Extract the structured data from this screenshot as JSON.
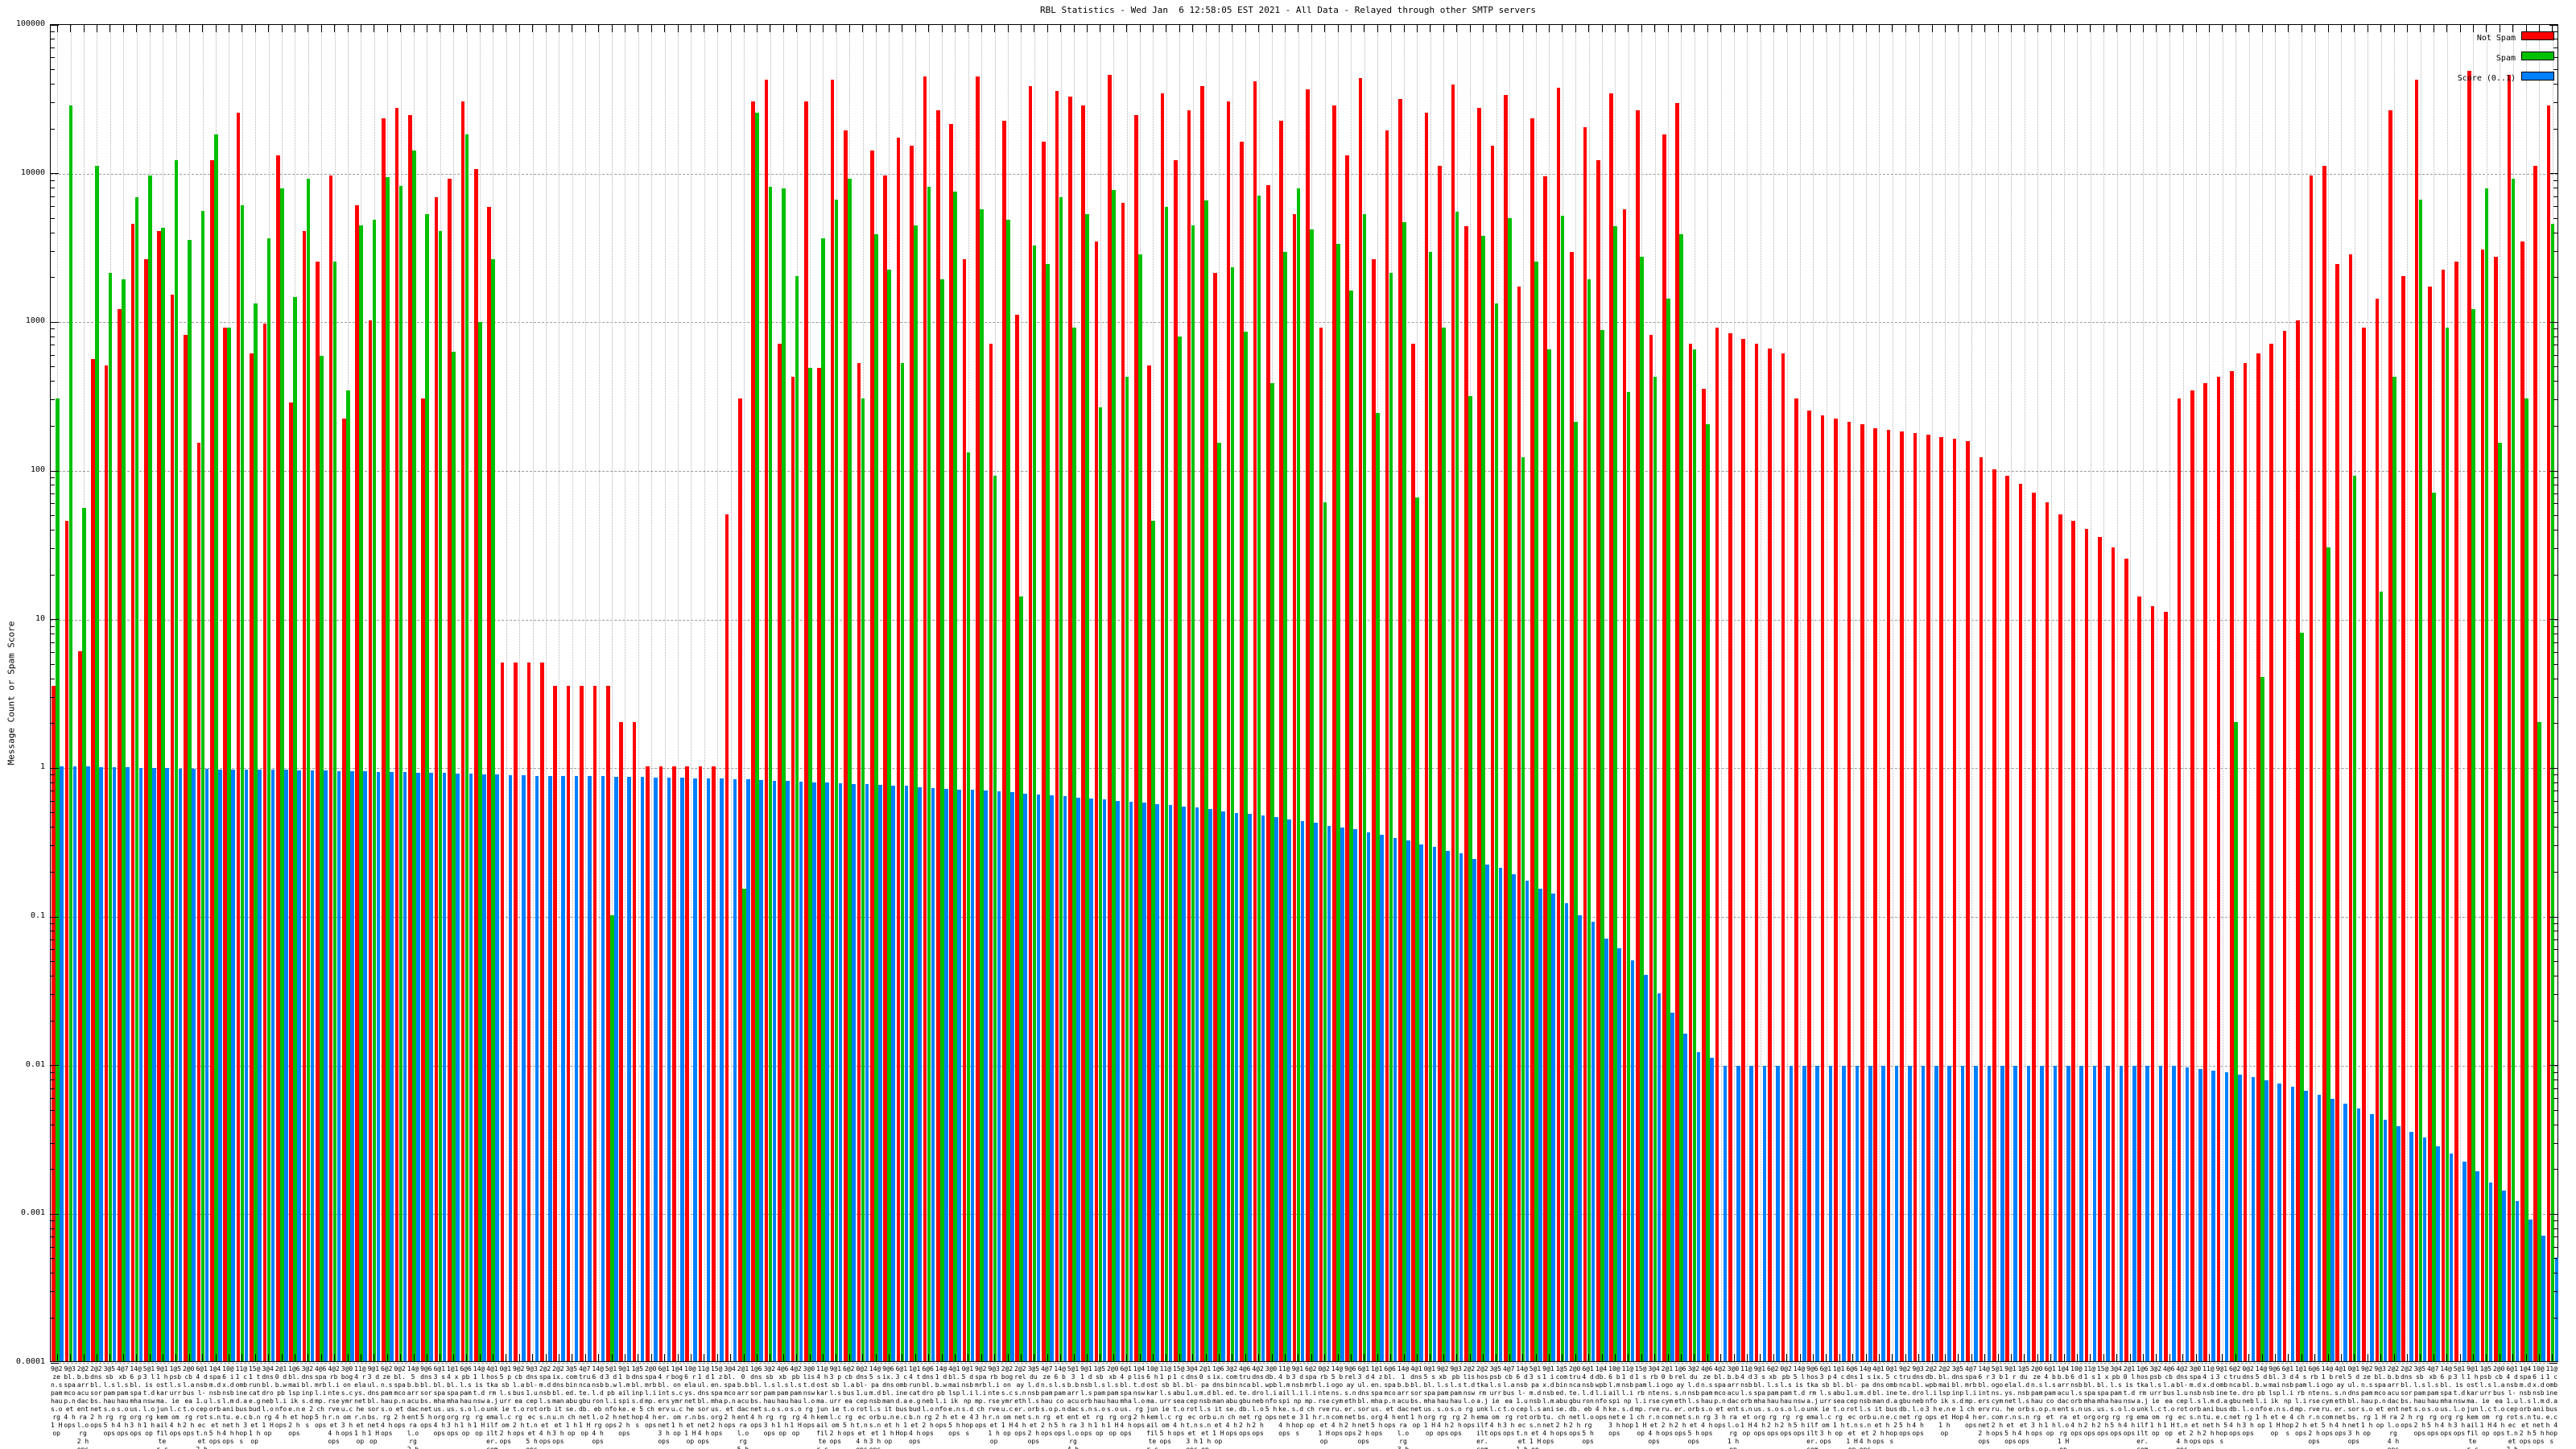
{
  "title": "RBL Statistics - Wed Jan  6 12:58:05 EST 2021 - All Data - Relayed through other SMTP servers",
  "axes": {
    "y_label": "Message Count or Spam Score",
    "y_ticks": [
      "100000",
      "10000",
      "1000",
      "100",
      "10",
      "1",
      "0.1",
      "0.01",
      "0.001",
      "0.0001"
    ],
    "y_min": 0.0001,
    "y_max": 100000,
    "scale": "log"
  },
  "legend": {
    "items": [
      {
        "label": "Not Spam",
        "color": "#ff0000"
      },
      {
        "label": "Spam",
        "color": "#00c000"
      },
      {
        "label": "Score (0..1)",
        "color": "#0080ff"
      }
    ]
  },
  "chart_data": {
    "type": "bar",
    "title": "RBL Statistics - Wed Jan  6 12:58:05 EST 2021 - All Data - Relayed through other SMTP servers",
    "ylabel": "Message Count or Spam Score",
    "ylim": [
      0.0001,
      100000
    ],
    "grid": true,
    "legend_position": "top-right",
    "series_names": [
      "Not Spam",
      "Spam",
      "Score (0..1)"
    ],
    "series_colors": [
      "#ff0000",
      "#00c000",
      "#0080ff"
    ],
    "clusters": [
      [
        3.5,
        300,
        1.0
      ],
      [
        45,
        28000,
        1.0
      ],
      [
        6,
        55,
        1.0
      ],
      [
        550,
        11000,
        0.99
      ],
      [
        500,
        2100,
        0.99
      ],
      [
        1200,
        1900,
        0.99
      ],
      [
        4500,
        6800,
        0.98
      ],
      [
        2600,
        9500,
        0.98
      ],
      [
        4000,
        4200,
        0.98
      ],
      [
        1500,
        12000,
        0.97
      ],
      [
        800,
        3500,
        0.97
      ],
      [
        150,
        5500,
        0.97
      ],
      [
        12000,
        18000,
        0.96
      ],
      [
        900,
        900,
        0.96
      ],
      [
        25000,
        6000,
        0.96
      ],
      [
        600,
        1300,
        0.95
      ],
      [
        950,
        3600,
        0.95
      ],
      [
        13000,
        7800,
        0.95
      ],
      [
        280,
        1450,
        0.94
      ],
      [
        4000,
        9000,
        0.94
      ],
      [
        2500,
        580,
        0.94
      ],
      [
        9500,
        2500,
        0.93
      ],
      [
        220,
        340,
        0.93
      ],
      [
        6000,
        4400,
        0.93
      ],
      [
        1000,
        4800,
        0.92
      ],
      [
        23000,
        9200,
        0.92
      ],
      [
        27000,
        8100,
        0.92
      ],
      [
        24000,
        14000,
        0.91
      ],
      [
        300,
        5200,
        0.91
      ],
      [
        6800,
        4000,
        0.91
      ],
      [
        9000,
        620,
        0.9
      ],
      [
        30000,
        18000,
        0.9
      ],
      [
        10500,
        980,
        0.89
      ],
      [
        5800,
        2600,
        0.89
      ],
      [
        5,
        0,
        0.88
      ],
      [
        5,
        0,
        0.88
      ],
      [
        5,
        0,
        0.87
      ],
      [
        5,
        0,
        0.87
      ],
      [
        3.5,
        0,
        0.87
      ],
      [
        3.5,
        0,
        0.86
      ],
      [
        3.5,
        0,
        0.86
      ],
      [
        3.5,
        0,
        0.86
      ],
      [
        3.5,
        0.1,
        0.85
      ],
      [
        2,
        0,
        0.85
      ],
      [
        2,
        0,
        0.85
      ],
      [
        1,
        0,
        0.84
      ],
      [
        1,
        0,
        0.84
      ],
      [
        1,
        0,
        0.84
      ],
      [
        1,
        0,
        0.83
      ],
      [
        1,
        0,
        0.83
      ],
      [
        1,
        0,
        0.83
      ],
      [
        50,
        0,
        0.82
      ],
      [
        300,
        0.15,
        0.82
      ],
      [
        30000,
        25000,
        0.81
      ],
      [
        42000,
        8000,
        0.8
      ],
      [
        700,
        7800,
        0.8
      ],
      [
        420,
        2000,
        0.79
      ],
      [
        30000,
        480,
        0.78
      ],
      [
        480,
        3600,
        0.78
      ],
      [
        42000,
        6500,
        0.77
      ],
      [
        19000,
        9000,
        0.76
      ],
      [
        520,
        300,
        0.76
      ],
      [
        14000,
        3800,
        0.75
      ],
      [
        9500,
        2200,
        0.74
      ],
      [
        17000,
        520,
        0.74
      ],
      [
        15000,
        4400,
        0.73
      ],
      [
        44000,
        8000,
        0.72
      ],
      [
        26000,
        1900,
        0.71
      ],
      [
        21000,
        7400,
        0.7
      ],
      [
        2600,
        130,
        0.7
      ],
      [
        44000,
        5600,
        0.69
      ],
      [
        700,
        90,
        0.68
      ],
      [
        22000,
        4800,
        0.67
      ],
      [
        1100,
        14,
        0.66
      ],
      [
        38000,
        3200,
        0.65
      ],
      [
        16000,
        2400,
        0.64
      ],
      [
        35000,
        6800,
        0.63
      ],
      [
        32000,
        900,
        0.62
      ],
      [
        28000,
        5200,
        0.61
      ],
      [
        3400,
        260,
        0.6
      ],
      [
        45000,
        7600,
        0.59
      ],
      [
        6200,
        420,
        0.58
      ],
      [
        24000,
        2800,
        0.57
      ],
      [
        500,
        45,
        0.56
      ],
      [
        34000,
        5800,
        0.55
      ],
      [
        12000,
        780,
        0.54
      ],
      [
        26000,
        4400,
        0.53
      ],
      [
        38000,
        6400,
        0.52
      ],
      [
        2100,
        150,
        0.5
      ],
      [
        30000,
        2300,
        0.49
      ],
      [
        16000,
        840,
        0.48
      ],
      [
        41000,
        6900,
        0.47
      ],
      [
        8200,
        380,
        0.46
      ],
      [
        22000,
        2900,
        0.44
      ],
      [
        5200,
        7800,
        0.43
      ],
      [
        36000,
        4100,
        0.42
      ],
      [
        900,
        60,
        0.4
      ],
      [
        28000,
        3300,
        0.39
      ],
      [
        13000,
        1600,
        0.38
      ],
      [
        43000,
        5200,
        0.36
      ],
      [
        2600,
        240,
        0.35
      ],
      [
        19000,
        2100,
        0.33
      ],
      [
        31000,
        4600,
        0.32
      ],
      [
        700,
        65,
        0.3
      ],
      [
        25000,
        2900,
        0.29
      ],
      [
        11000,
        900,
        0.27
      ],
      [
        39000,
        5400,
        0.26
      ],
      [
        4300,
        310,
        0.24
      ],
      [
        27000,
        3700,
        0.22
      ],
      [
        15000,
        1300,
        0.21
      ],
      [
        33000,
        4900,
        0.19
      ],
      [
        1700,
        120,
        0.17
      ],
      [
        23000,
        2500,
        0.15
      ],
      [
        9400,
        640,
        0.14
      ],
      [
        37000,
        5100,
        0.12
      ],
      [
        2900,
        210,
        0.1
      ],
      [
        20000,
        1900,
        0.09
      ],
      [
        12000,
        860,
        0.07
      ],
      [
        34000,
        4300,
        0.06
      ],
      [
        5600,
        330,
        0.05
      ],
      [
        26000,
        2700,
        0.04
      ],
      [
        800,
        420,
        0.03
      ],
      [
        18000,
        1400,
        0.022
      ],
      [
        29000,
        3800,
        0.016
      ],
      [
        700,
        640,
        0.012
      ],
      [
        350,
        200,
        0.011
      ],
      [
        900,
        0,
        0.0097
      ],
      [
        820,
        0,
        0.0097
      ],
      [
        750,
        0,
        0.0097
      ],
      [
        700,
        0,
        0.0097
      ],
      [
        650,
        0,
        0.0097
      ],
      [
        600,
        0,
        0.0097
      ],
      [
        300,
        0,
        0.0097
      ],
      [
        250,
        0,
        0.0097
      ],
      [
        230,
        0,
        0.0097
      ],
      [
        220,
        0,
        0.0097
      ],
      [
        210,
        0,
        0.0097
      ],
      [
        200,
        0,
        0.0097
      ],
      [
        190,
        0,
        0.0097
      ],
      [
        185,
        0,
        0.0097
      ],
      [
        180,
        0,
        0.0097
      ],
      [
        175,
        0,
        0.0097
      ],
      [
        170,
        0,
        0.0097
      ],
      [
        165,
        0,
        0.0097
      ],
      [
        160,
        0,
        0.0097
      ],
      [
        155,
        0,
        0.0097
      ],
      [
        120,
        0,
        0.0097
      ],
      [
        100,
        0,
        0.0097
      ],
      [
        90,
        0,
        0.0097
      ],
      [
        80,
        0,
        0.0097
      ],
      [
        70,
        0,
        0.0097
      ],
      [
        60,
        0,
        0.0097
      ],
      [
        50,
        0,
        0.0097
      ],
      [
        45,
        0,
        0.0097
      ],
      [
        40,
        0,
        0.0097
      ],
      [
        35,
        0,
        0.0097
      ],
      [
        30,
        0,
        0.0097
      ],
      [
        25,
        0,
        0.0097
      ],
      [
        14,
        0,
        0.0097
      ],
      [
        12,
        0,
        0.0097
      ],
      [
        11,
        0,
        0.0097
      ],
      [
        300,
        0,
        0.0095
      ],
      [
        340,
        0,
        0.0093
      ],
      [
        380,
        0,
        0.009
      ],
      [
        420,
        0,
        0.0088
      ],
      [
        460,
        2,
        0.0085
      ],
      [
        520,
        0,
        0.0082
      ],
      [
        600,
        4,
        0.0078
      ],
      [
        700,
        0,
        0.0074
      ],
      [
        850,
        0,
        0.007
      ],
      [
        1000,
        8,
        0.0066
      ],
      [
        9500,
        0,
        0.0062
      ],
      [
        11000,
        30,
        0.0058
      ],
      [
        2400,
        0,
        0.0054
      ],
      [
        2800,
        90,
        0.005
      ],
      [
        900,
        0,
        0.0046
      ],
      [
        1400,
        15,
        0.0042
      ],
      [
        26000,
        420,
        0.0038
      ],
      [
        2000,
        0,
        0.0035
      ],
      [
        42000,
        6500,
        0.0032
      ],
      [
        1700,
        70,
        0.0028
      ],
      [
        2200,
        900,
        0.0025
      ],
      [
        2500,
        0,
        0.0022
      ],
      [
        48000,
        1200,
        0.0019
      ],
      [
        3000,
        7800,
        0.0016
      ],
      [
        2700,
        150,
        0.0014
      ],
      [
        45000,
        9000,
        0.0012
      ],
      [
        3400,
        300,
        0.0009
      ],
      [
        11000,
        2,
        0.0007
      ],
      [
        28000,
        4500,
        0.0005
      ]
    ],
    "xlabel_tokens": {
      "counts": [
        "9@2",
        "9@3",
        "2@2",
        "2@2",
        "3@5",
        "4@7",
        "14@6",
        "5@13",
        "9@11",
        "1@5",
        "2@0",
        "6@14",
        "1@4",
        "10@6",
        "11@1",
        "15@1",
        "3@4",
        "2@10",
        "1@6",
        "3@2",
        "4@6",
        "4@2",
        "3@0",
        "11@4",
        "9@13",
        "6@2",
        "0@2",
        "14@5",
        "9@6",
        "6@13",
        "1@14",
        "6@6",
        "14@1",
        "4@1",
        "0@15"
      ],
      "names": [
        "zen.spamhaus.org",
        "bl.spamcop.net",
        "b.barracudacentral.org",
        "dnsbl.sorbs.net",
        "sbl.spamhaus.org",
        "xbl.spamhaus.org",
        "pbl.spamhaus.org",
        "list.dnswl.org",
        "hostkarma.junkemailfilter.com",
        "psbl.surriel.com",
        "cbl.abuseat.org",
        "dnsbl-1.uceprotect.net",
        "spam.dnsbl.sorbs.net",
        "ix.dnsbl.manitu.net",
        "combined.abuse.ch",
        "truncate.gbudb.net",
        "dnsbl.dronebl.org",
        "db.wpbl.info",
        "bl.mailspike.net",
        "dnsbl.inps.de",
        "spamrbl.imp.ch",
        "rbl.interserver.net",
        "bogons.cymru.com",
        "relays.nether.net",
        "dul.dnsbl.sorbs.net"
      ],
      "hops": [
        "1 Hop",
        "2 hops",
        "3 hops",
        "4 hops",
        "5 hops",
        "1 hop",
        "2 hops",
        "4 hops"
      ]
    }
  }
}
